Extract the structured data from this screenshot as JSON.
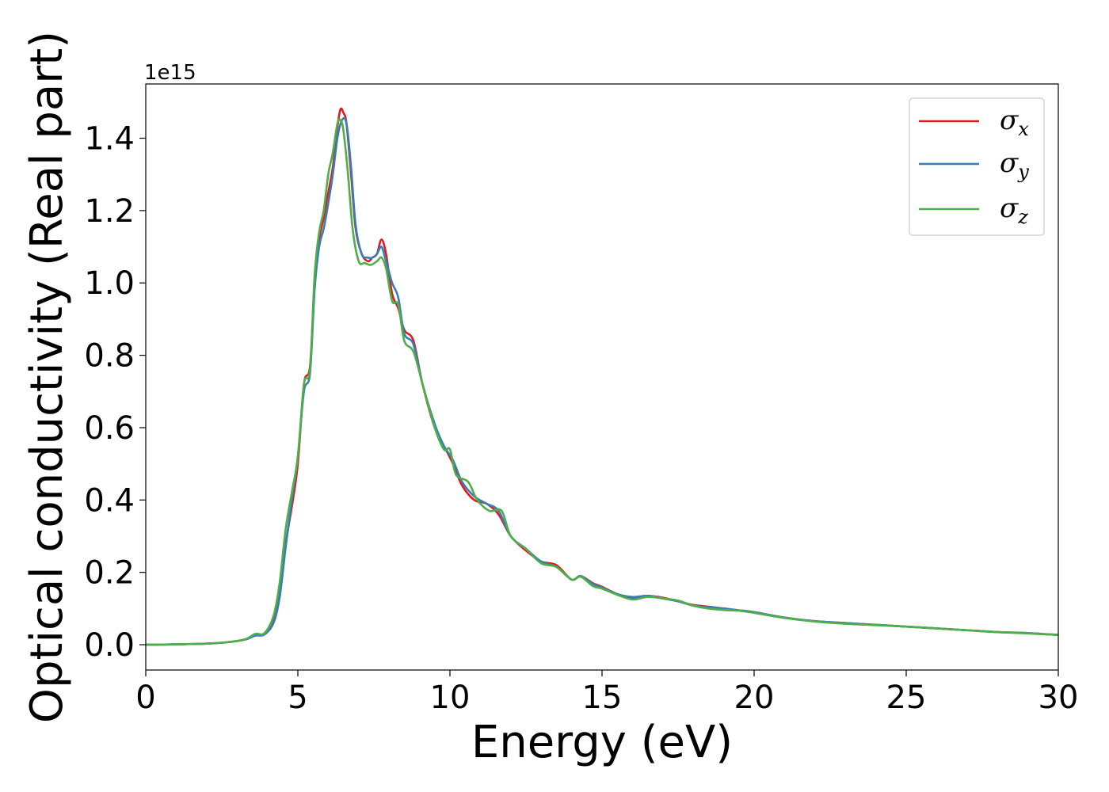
{
  "chart_data": {
    "type": "line",
    "title": "",
    "xlabel": "Energy (eV)",
    "ylabel": "Optical conductivity (Real part)",
    "y_offset_label": "1e15",
    "xlim": [
      0,
      30
    ],
    "ylim": [
      -0.07,
      1.55
    ],
    "xticks": [
      0,
      5,
      10,
      15,
      20,
      25,
      30
    ],
    "xtick_labels": [
      "0",
      "5",
      "10",
      "15",
      "20",
      "25",
      "30"
    ],
    "yticks": [
      0.0,
      0.2,
      0.4,
      0.6,
      0.8,
      1.0,
      1.2,
      1.4
    ],
    "ytick_labels": [
      "0.0",
      "0.2",
      "0.4",
      "0.6",
      "0.8",
      "1.0",
      "1.2",
      "1.4"
    ],
    "grid": false,
    "legend_position": "top-right",
    "series": [
      {
        "name": "σ",
        "subscript": "x",
        "color": "#e41a1c",
        "points": [
          [
            0,
            0
          ],
          [
            1,
            0.001
          ],
          [
            2,
            0.003
          ],
          [
            2.8,
            0.008
          ],
          [
            3.3,
            0.015
          ],
          [
            3.6,
            0.028
          ],
          [
            3.9,
            0.03
          ],
          [
            4.2,
            0.07
          ],
          [
            4.4,
            0.15
          ],
          [
            4.6,
            0.28
          ],
          [
            4.8,
            0.38
          ],
          [
            5.0,
            0.5
          ],
          [
            5.2,
            0.72
          ],
          [
            5.4,
            0.77
          ],
          [
            5.55,
            1.0
          ],
          [
            5.7,
            1.12
          ],
          [
            5.85,
            1.18
          ],
          [
            6.0,
            1.25
          ],
          [
            6.15,
            1.32
          ],
          [
            6.3,
            1.43
          ],
          [
            6.4,
            1.48
          ],
          [
            6.5,
            1.47
          ],
          [
            6.6,
            1.44
          ],
          [
            6.75,
            1.3
          ],
          [
            6.9,
            1.15
          ],
          [
            7.1,
            1.08
          ],
          [
            7.3,
            1.06
          ],
          [
            7.45,
            1.07
          ],
          [
            7.6,
            1.08
          ],
          [
            7.75,
            1.12
          ],
          [
            7.9,
            1.08
          ],
          [
            8.1,
            0.97
          ],
          [
            8.3,
            0.93
          ],
          [
            8.5,
            0.87
          ],
          [
            8.8,
            0.84
          ],
          [
            9.1,
            0.72
          ],
          [
            9.5,
            0.6
          ],
          [
            9.8,
            0.55
          ],
          [
            10.1,
            0.5
          ],
          [
            10.4,
            0.44
          ],
          [
            10.8,
            0.4
          ],
          [
            11.2,
            0.39
          ],
          [
            11.6,
            0.36
          ],
          [
            12.0,
            0.3
          ],
          [
            12.5,
            0.26
          ],
          [
            13.0,
            0.23
          ],
          [
            13.5,
            0.22
          ],
          [
            14.0,
            0.18
          ],
          [
            14.3,
            0.19
          ],
          [
            14.7,
            0.17
          ],
          [
            15.0,
            0.16
          ],
          [
            15.5,
            0.14
          ],
          [
            16.0,
            0.13
          ],
          [
            16.5,
            0.135
          ],
          [
            17.0,
            0.13
          ],
          [
            17.5,
            0.12
          ],
          [
            18.0,
            0.11
          ],
          [
            18.5,
            0.105
          ],
          [
            19.0,
            0.1
          ],
          [
            19.5,
            0.095
          ],
          [
            20.0,
            0.09
          ],
          [
            21.0,
            0.075
          ],
          [
            22.0,
            0.065
          ],
          [
            23.0,
            0.06
          ],
          [
            24.0,
            0.055
          ],
          [
            25.0,
            0.05
          ],
          [
            26.0,
            0.045
          ],
          [
            27.0,
            0.04
          ],
          [
            28.0,
            0.035
          ],
          [
            29.0,
            0.032
          ],
          [
            30.0,
            0.027
          ]
        ]
      },
      {
        "name": "σ",
        "subscript": "y",
        "color": "#377eb8",
        "points": [
          [
            0,
            0
          ],
          [
            1,
            0.001
          ],
          [
            2,
            0.003
          ],
          [
            2.8,
            0.008
          ],
          [
            3.3,
            0.015
          ],
          [
            3.6,
            0.025
          ],
          [
            3.9,
            0.028
          ],
          [
            4.2,
            0.06
          ],
          [
            4.4,
            0.13
          ],
          [
            4.6,
            0.27
          ],
          [
            4.8,
            0.4
          ],
          [
            5.0,
            0.52
          ],
          [
            5.2,
            0.7
          ],
          [
            5.4,
            0.75
          ],
          [
            5.55,
            0.98
          ],
          [
            5.7,
            1.1
          ],
          [
            5.85,
            1.15
          ],
          [
            6.0,
            1.22
          ],
          [
            6.15,
            1.3
          ],
          [
            6.3,
            1.4
          ],
          [
            6.45,
            1.45
          ],
          [
            6.6,
            1.44
          ],
          [
            6.75,
            1.32
          ],
          [
            6.9,
            1.16
          ],
          [
            7.1,
            1.08
          ],
          [
            7.3,
            1.07
          ],
          [
            7.45,
            1.07
          ],
          [
            7.6,
            1.08
          ],
          [
            7.75,
            1.1
          ],
          [
            7.9,
            1.06
          ],
          [
            8.1,
            1.0
          ],
          [
            8.3,
            0.96
          ],
          [
            8.5,
            0.86
          ],
          [
            8.8,
            0.83
          ],
          [
            9.1,
            0.72
          ],
          [
            9.5,
            0.61
          ],
          [
            9.8,
            0.55
          ],
          [
            10.1,
            0.51
          ],
          [
            10.4,
            0.45
          ],
          [
            10.8,
            0.41
          ],
          [
            11.2,
            0.39
          ],
          [
            11.6,
            0.37
          ],
          [
            12.0,
            0.3
          ],
          [
            12.5,
            0.265
          ],
          [
            13.0,
            0.23
          ],
          [
            13.5,
            0.215
          ],
          [
            14.0,
            0.18
          ],
          [
            14.3,
            0.19
          ],
          [
            14.7,
            0.168
          ],
          [
            15.0,
            0.158
          ],
          [
            15.5,
            0.14
          ],
          [
            16.0,
            0.132
          ],
          [
            16.5,
            0.135
          ],
          [
            17.0,
            0.128
          ],
          [
            17.5,
            0.12
          ],
          [
            18.0,
            0.108
          ],
          [
            18.5,
            0.104
          ],
          [
            19.0,
            0.1
          ],
          [
            19.5,
            0.095
          ],
          [
            20.0,
            0.09
          ],
          [
            21.0,
            0.075
          ],
          [
            22.0,
            0.065
          ],
          [
            23.0,
            0.06
          ],
          [
            24.0,
            0.055
          ],
          [
            25.0,
            0.05
          ],
          [
            26.0,
            0.045
          ],
          [
            27.0,
            0.04
          ],
          [
            28.0,
            0.035
          ],
          [
            29.0,
            0.032
          ],
          [
            30.0,
            0.027
          ]
        ]
      },
      {
        "name": "σ",
        "subscript": "z",
        "color": "#4daf4a",
        "points": [
          [
            0,
            0
          ],
          [
            1,
            0.001
          ],
          [
            2,
            0.003
          ],
          [
            2.8,
            0.008
          ],
          [
            3.3,
            0.016
          ],
          [
            3.6,
            0.03
          ],
          [
            3.9,
            0.032
          ],
          [
            4.2,
            0.08
          ],
          [
            4.4,
            0.17
          ],
          [
            4.6,
            0.32
          ],
          [
            4.8,
            0.42
          ],
          [
            5.0,
            0.52
          ],
          [
            5.2,
            0.72
          ],
          [
            5.4,
            0.76
          ],
          [
            5.55,
            1.02
          ],
          [
            5.7,
            1.14
          ],
          [
            5.85,
            1.2
          ],
          [
            6.0,
            1.3
          ],
          [
            6.15,
            1.36
          ],
          [
            6.3,
            1.44
          ],
          [
            6.4,
            1.45
          ],
          [
            6.5,
            1.42
          ],
          [
            6.65,
            1.3
          ],
          [
            6.8,
            1.15
          ],
          [
            7.0,
            1.06
          ],
          [
            7.2,
            1.055
          ],
          [
            7.4,
            1.05
          ],
          [
            7.6,
            1.06
          ],
          [
            7.75,
            1.07
          ],
          [
            7.9,
            1.04
          ],
          [
            8.1,
            0.95
          ],
          [
            8.3,
            0.94
          ],
          [
            8.5,
            0.84
          ],
          [
            8.8,
            0.81
          ],
          [
            9.1,
            0.72
          ],
          [
            9.5,
            0.6
          ],
          [
            9.8,
            0.54
          ],
          [
            10.0,
            0.54
          ],
          [
            10.2,
            0.47
          ],
          [
            10.6,
            0.45
          ],
          [
            10.9,
            0.4
          ],
          [
            11.3,
            0.37
          ],
          [
            11.7,
            0.37
          ],
          [
            12.0,
            0.3
          ],
          [
            12.5,
            0.265
          ],
          [
            13.0,
            0.225
          ],
          [
            13.5,
            0.215
          ],
          [
            14.0,
            0.18
          ],
          [
            14.3,
            0.188
          ],
          [
            14.7,
            0.162
          ],
          [
            15.0,
            0.155
          ],
          [
            15.5,
            0.138
          ],
          [
            16.0,
            0.125
          ],
          [
            16.5,
            0.132
          ],
          [
            17.0,
            0.128
          ],
          [
            17.5,
            0.122
          ],
          [
            18.0,
            0.108
          ],
          [
            18.5,
            0.1
          ],
          [
            19.0,
            0.096
          ],
          [
            19.5,
            0.094
          ],
          [
            20.0,
            0.088
          ],
          [
            21.0,
            0.074
          ],
          [
            22.0,
            0.064
          ],
          [
            23.0,
            0.058
          ],
          [
            24.0,
            0.054
          ],
          [
            25.0,
            0.05
          ],
          [
            26.0,
            0.045
          ],
          [
            27.0,
            0.04
          ],
          [
            28.0,
            0.035
          ],
          [
            29.0,
            0.031
          ],
          [
            30.0,
            0.027
          ]
        ]
      }
    ]
  }
}
